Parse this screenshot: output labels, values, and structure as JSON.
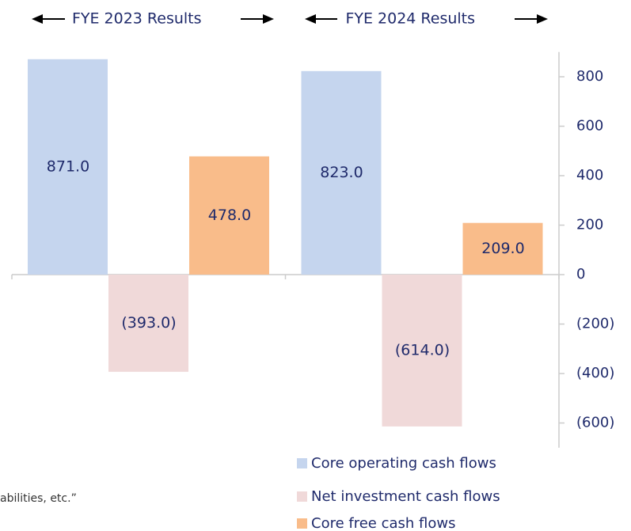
{
  "chart_data": {
    "type": "bar",
    "categories": [
      "FYE 2023 Results",
      "FYE 2024 Results"
    ],
    "series": [
      {
        "name": "Core operating cash flows",
        "color": "#c5d5ee",
        "values": [
          871.0,
          823.0
        ],
        "value_labels": [
          "871.0",
          "823.0"
        ]
      },
      {
        "name": "Net investment cash flows",
        "color": "#f0d9d9",
        "values": [
          -393.0,
          -614.0
        ],
        "value_labels": [
          "(393.0)",
          "(614.0)"
        ]
      },
      {
        "name": "Core free cash flows",
        "color": "#f9bc8a",
        "values": [
          478.0,
          209.0
        ],
        "value_labels": [
          "478.0",
          "209.0"
        ]
      }
    ],
    "ylim": [
      -700,
      900
    ],
    "yticks": [
      {
        "value": -600,
        "label": "(600)"
      },
      {
        "value": -400,
        "label": "(400)"
      },
      {
        "value": -200,
        "label": "(200)"
      },
      0,
      200,
      400,
      600,
      800
    ],
    "footnote": "abilities, etc.”"
  }
}
